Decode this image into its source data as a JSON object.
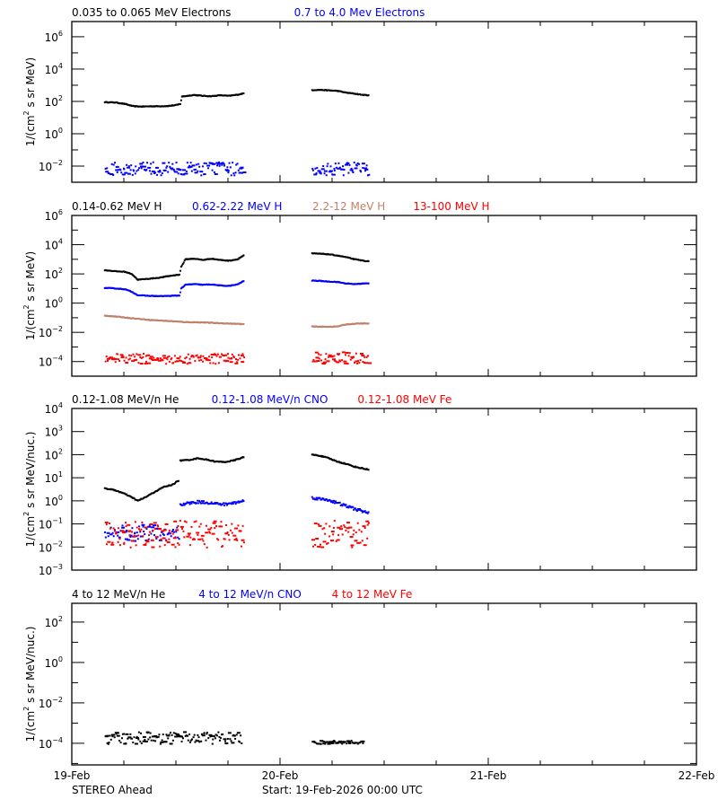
{
  "footer": {
    "spacecraft": "STEREO Ahead",
    "start": "Start: 19-Feb-2026 00:00 UTC"
  },
  "colors": {
    "black": "#000000",
    "blue": "#0000ff",
    "tan": "#c0806a",
    "red": "#ff0000"
  },
  "chart_data": [
    {
      "type": "scatter",
      "panel": 1,
      "title_parts": [
        {
          "text": "0.035 to 0.065 MeV Electrons",
          "color": "#000000"
        },
        {
          "text": "0.7 to 4.0 Mev Electrons",
          "color": "#0000ff"
        }
      ],
      "ylabel": "1/(cm2 s sr MeV)",
      "yscale": "log",
      "ylim": [
        0.001,
        8700000.0
      ],
      "yticks": [
        "10^6",
        "10^4",
        "10^2",
        "10^0",
        "10^-2"
      ],
      "xlabel": "",
      "xlim_hours": [
        0,
        72
      ],
      "xticks": [
        "19-Feb",
        "20-Feb",
        "21-Feb",
        "22-Feb"
      ],
      "series": [
        {
          "name": "0.035 to 0.065 MeV Electrons",
          "color": "#000000",
          "segments": [
            {
              "x": [
                3.7,
                5,
                6,
                7,
                8,
                9,
                10,
                11,
                12,
                12.4,
                12.6,
                14,
                15,
                16,
                17,
                18,
                19,
                19.8
              ],
              "y": [
                90,
                85,
                70,
                50,
                48,
                50,
                50,
                52,
                60,
                70,
                200,
                250,
                220,
                210,
                240,
                220,
                260,
                320
              ]
            },
            {
              "x": [
                27.6,
                28.5,
                29.5,
                30.5,
                31.5,
                32.5,
                33.5,
                34.2
              ],
              "y": [
                500,
                520,
                480,
                450,
                350,
                300,
                250,
                240
              ]
            }
          ]
        },
        {
          "name": "0.7 to 4.0 Mev Electrons",
          "color": "#0000ff",
          "scatter": true,
          "segments": [
            {
              "x": [
                3.7,
                19.8
              ],
              "y": [
                0.003,
                0.02
              ]
            },
            {
              "x": [
                27.6,
                34.2
              ],
              "y": [
                0.003,
                0.02
              ]
            }
          ]
        }
      ]
    },
    {
      "type": "scatter",
      "panel": 2,
      "title_parts": [
        {
          "text": "0.14-0.62 MeV H",
          "color": "#000000"
        },
        {
          "text": "0.62-2.22 MeV H",
          "color": "#0000ff"
        },
        {
          "text": "2.2-12 MeV H",
          "color": "#c0806a"
        },
        {
          "text": "13-100 MeV H",
          "color": "#ff0000"
        }
      ],
      "ylabel": "1/(cm2 s sr MeV)",
      "yscale": "log",
      "ylim": [
        1e-05,
        1000000.0
      ],
      "yticks": [
        "10^6",
        "10^4",
        "10^2",
        "10^0",
        "10^-2",
        "10^-4"
      ],
      "xlim_hours": [
        0,
        72
      ],
      "xticks": [
        "19-Feb",
        "20-Feb",
        "21-Feb",
        "22-Feb"
      ],
      "series": [
        {
          "name": "0.14-0.62 MeV H",
          "color": "#000000",
          "segments": [
            {
              "x": [
                3.7,
                5,
                6,
                6.8,
                7.5,
                8.5,
                10,
                11,
                12.3,
                12.5,
                13,
                14,
                15,
                16,
                17,
                18,
                19,
                19.8
              ],
              "y": [
                180,
                150,
                140,
                100,
                40,
                45,
                55,
                70,
                90,
                300,
                1000,
                1100,
                900,
                1100,
                900,
                800,
                1000,
                2000
              ]
            },
            {
              "x": [
                27.6,
                28.5,
                29.5,
                30.5,
                31.5,
                32.5,
                33.5,
                34.2
              ],
              "y": [
                2500,
                2400,
                2200,
                1800,
                1400,
                1000,
                800,
                700
              ]
            }
          ]
        },
        {
          "name": "0.62-2.22 MeV H",
          "color": "#0000ff",
          "segments": [
            {
              "x": [
                3.7,
                5,
                6,
                6.8,
                7.5,
                8.5,
                10,
                11,
                12.3,
                12.5,
                13,
                14,
                15,
                16,
                17,
                18,
                19,
                19.8
              ],
              "y": [
                11,
                10,
                9,
                6,
                3.5,
                3.2,
                3,
                3.1,
                3.3,
                10,
                18,
                20,
                18,
                19,
                16,
                15,
                19,
                35
              ]
            },
            {
              "x": [
                27.6,
                28.5,
                29.5,
                30.5,
                31.5,
                32.5,
                33.5,
                34.2
              ],
              "y": [
                35,
                33,
                30,
                28,
                22,
                20,
                22,
                22
              ]
            }
          ]
        },
        {
          "name": "2.2-12 MeV H",
          "color": "#c0806a",
          "segments": [
            {
              "x": [
                3.7,
                5,
                7,
                9,
                11,
                13,
                15,
                17,
                19,
                19.8
              ],
              "y": [
                0.14,
                0.12,
                0.09,
                0.07,
                0.06,
                0.05,
                0.048,
                0.042,
                0.038,
                0.036
              ]
            },
            {
              "x": [
                27.6,
                29,
                30.5,
                31.5,
                33,
                34.2
              ],
              "y": [
                0.025,
                0.024,
                0.025,
                0.035,
                0.04,
                0.04
              ]
            }
          ]
        },
        {
          "name": "13-100 MeV H",
          "color": "#ff0000",
          "scatter": true,
          "segments": [
            {
              "x": [
                3.7,
                19.8
              ],
              "y": [
                8e-05,
                0.0004
              ]
            },
            {
              "x": [
                27.6,
                34.2
              ],
              "y": [
                8e-05,
                0.0005
              ]
            }
          ]
        }
      ]
    },
    {
      "type": "scatter",
      "panel": 3,
      "title_parts": [
        {
          "text": "0.12-1.08 MeV/n He",
          "color": "#000000"
        },
        {
          "text": "0.12-1.08 MeV/n CNO",
          "color": "#0000ff"
        },
        {
          "text": "0.12-1.08 MeV Fe",
          "color": "#ff0000"
        }
      ],
      "ylabel": "1/(cm2 s sr MeV/nuc.)",
      "yscale": "log",
      "ylim": [
        0.001,
        10000.0
      ],
      "yticks": [
        "10^4",
        "10^3",
        "10^2",
        "10^1",
        "10^0",
        "10^-1",
        "10^-2",
        "10^-3"
      ],
      "xlim_hours": [
        0,
        72
      ],
      "xticks": [
        "19-Feb",
        "20-Feb",
        "21-Feb",
        "22-Feb"
      ],
      "series": [
        {
          "name": "0.12-1.08 MeV/n He",
          "color": "#000000",
          "segments": [
            {
              "x": [
                3.7,
                5,
                6,
                7,
                7.5,
                8.5,
                9.5,
                10.5,
                11.5,
                12.3
              ],
              "y": [
                3.5,
                2.8,
                2.0,
                1.3,
                1.0,
                1.5,
                2.5,
                4,
                5,
                8
              ]
            },
            {
              "x": [
                12.4,
                13.5,
                14.5,
                15.5,
                16.5,
                17.5,
                18.5,
                19.8
              ],
              "y": [
                55,
                60,
                70,
                60,
                50,
                48,
                55,
                80
              ]
            },
            {
              "x": [
                27.6,
                28.5,
                29.5,
                30.5,
                31.5,
                32.5,
                33.5,
                34.2
              ],
              "y": [
                100,
                90,
                70,
                50,
                40,
                30,
                25,
                22
              ]
            }
          ]
        },
        {
          "name": "0.12-1.08 MeV/n CNO",
          "color": "#0000ff",
          "scatter": true,
          "segments": [
            {
              "x": [
                3.7,
                12.3
              ],
              "y": [
                0.02,
                0.1
              ]
            },
            {
              "x": [
                12.4,
                13.5,
                14.5,
                15.5,
                16.5,
                17.5,
                18.5,
                19.8
              ],
              "y": [
                0.7,
                0.8,
                0.9,
                0.85,
                0.75,
                0.7,
                0.8,
                1.0
              ],
              "line": true
            },
            {
              "x": [
                27.6,
                28.5,
                29.5,
                30.5,
                31.5,
                32.5,
                33.5,
                34.2
              ],
              "y": [
                1.4,
                1.2,
                1.1,
                0.8,
                0.6,
                0.45,
                0.35,
                0.3
              ],
              "line": true
            }
          ]
        },
        {
          "name": "0.12-1.08 MeV Fe",
          "color": "#ff0000",
          "scatter": true,
          "segments": [
            {
              "x": [
                3.7,
                19.8
              ],
              "y": [
                0.01,
                0.15
              ]
            },
            {
              "x": [
                27.6,
                34.2
              ],
              "y": [
                0.01,
                0.15
              ]
            }
          ]
        }
      ]
    },
    {
      "type": "scatter",
      "panel": 4,
      "title_parts": [
        {
          "text": "4 to 12 MeV/n He",
          "color": "#000000"
        },
        {
          "text": "4 to 12 MeV/n CNO",
          "color": "#0000ff"
        },
        {
          "text": "4 to 12 MeV Fe",
          "color": "#ff0000"
        }
      ],
      "ylabel": "1/(cm2 s sr MeV/nuc.)",
      "yscale": "log",
      "ylim": [
        8.5e-06,
        850.0
      ],
      "yticks": [
        "10^2",
        "10^0",
        "10^-2",
        "10^-4"
      ],
      "xlim_hours": [
        0,
        72
      ],
      "xticks": [
        "19-Feb",
        "20-Feb",
        "21-Feb",
        "22-Feb"
      ],
      "series": [
        {
          "name": "4 to 12 MeV/n He",
          "color": "#000000",
          "scatter": true,
          "segments": [
            {
              "x": [
                3.7,
                19.5
              ],
              "y": [
                0.0001,
                0.0004
              ]
            },
            {
              "x": [
                27.6,
                33.5
              ],
              "y": [
                0.0001,
                0.00015
              ]
            }
          ]
        },
        {
          "name": "4 to 12 MeV/n CNO",
          "color": "#0000ff",
          "segments": []
        },
        {
          "name": "4 to 12 MeV Fe",
          "color": "#ff0000",
          "segments": []
        }
      ]
    }
  ]
}
